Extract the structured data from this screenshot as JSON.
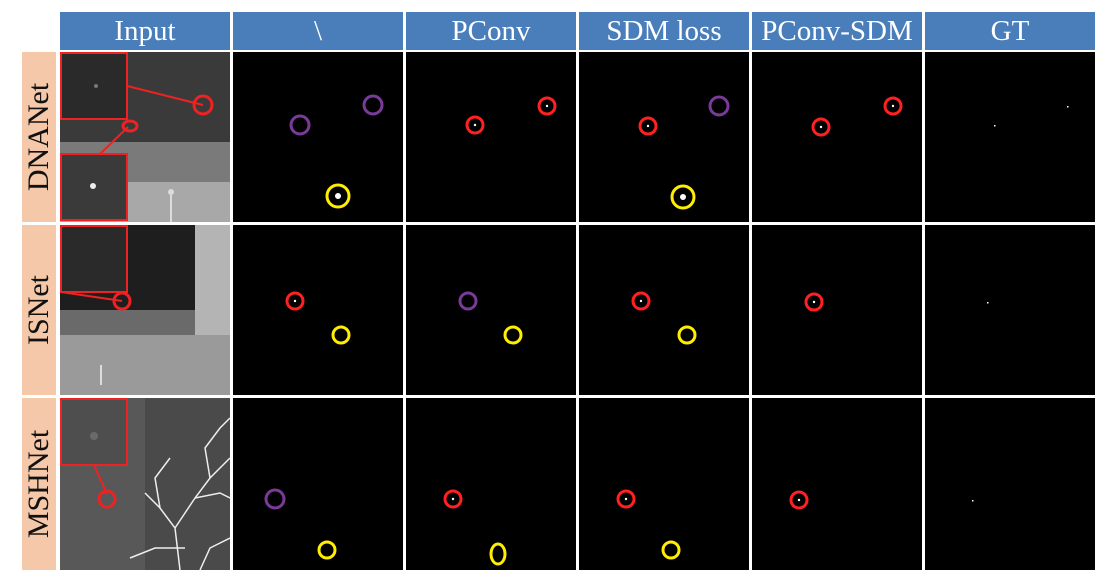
{
  "columns": [
    "Input",
    "\\",
    "PConv",
    "SDM loss",
    "PConv-SDM",
    "GT"
  ],
  "rows": [
    {
      "label": "DNANet"
    },
    {
      "label": "ISNet"
    },
    {
      "label": "MSHNet"
    }
  ],
  "colors": {
    "header": "#4a7ebb",
    "row_label": "#f4c8a8",
    "red": "#ff2020",
    "purple": "#7a3a9a",
    "yellow": "#ffee00",
    "inset_border": "#ee2222"
  }
}
